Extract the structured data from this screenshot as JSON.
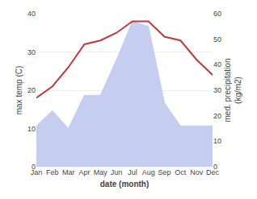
{
  "chart_data": {
    "type": "line",
    "categories": [
      "Jan",
      "Feb",
      "Mar",
      "Apr",
      "May",
      "Jun",
      "Jul",
      "Aug",
      "Sep",
      "Oct",
      "Nov",
      "Dec"
    ],
    "xlabel": "date (month)",
    "ylabel": "max temp (C)",
    "y2label": "med. precipitation\n(kg/m2)",
    "series": [
      {
        "type": "area",
        "axis": "y2",
        "color": "#c5cdf0",
        "values": [
          16,
          22,
          15,
          28,
          28,
          42,
          57,
          55,
          25,
          16,
          16,
          16
        ]
      },
      {
        "type": "line",
        "color": "#c0393b",
        "values": [
          18,
          21,
          26,
          32,
          33,
          35,
          38,
          38,
          34,
          33,
          28,
          24
        ]
      }
    ],
    "ylim": [
      0,
      40
    ],
    "yticks": [
      0,
      10,
      20,
      30,
      40
    ],
    "y2lim": [
      0,
      60
    ],
    "y2ticks": [
      0,
      10,
      20,
      30,
      40,
      50,
      60
    ],
    "grid": true
  }
}
